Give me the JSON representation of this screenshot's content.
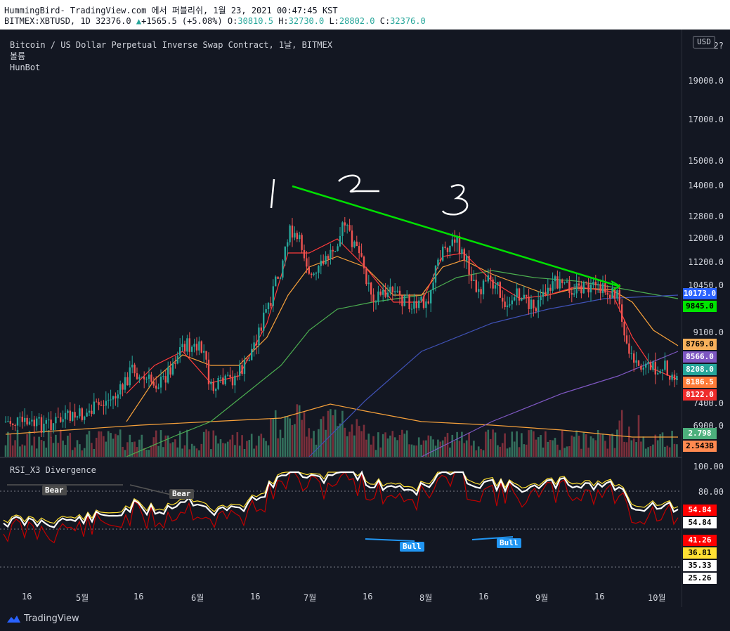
{
  "topbar": {
    "title": "HummingBird- TradingView.com 에서 퍼블리쉬, 1월 23, 2021 00:47:45 KST",
    "symbol": "BITMEX:XBTUSD, 1D 32376.0",
    "change": "+1565.5 (+5.08%)",
    "o_label": "O:",
    "o_value": "30810.5",
    "h_label": "H:",
    "h_value": "32730.0",
    "l_label": "L:",
    "l_value": "28802.0",
    "c_label": "C:",
    "c_value": "32376.0"
  },
  "legend": {
    "line1": "Bitcoin / US Dollar Perpetual Inverse Swap Contract, 1날, BITMEX",
    "line2": "볼륨",
    "line3": "HunBot",
    "rsi": "RSI_X3 Divergence"
  },
  "axis": {
    "currency": "USD",
    "price_ticks": [
      "19000.0",
      "17000.0",
      "15000.0",
      "14000.0",
      "12800.0",
      "12000.0",
      "11200.0",
      "10450.0",
      "9100.0",
      "7400.0",
      "6900.0"
    ],
    "top_partial": "2?",
    "rsi_ticks": [
      "100.00",
      "80.00",
      "25.26"
    ]
  },
  "price_tags": [
    {
      "text": "10173.0",
      "bg": "#2962ff",
      "fg": "#ffffff"
    },
    {
      "text": "9845.0",
      "bg": "#00e600",
      "fg": "#000000"
    },
    {
      "text": "8769.0",
      "bg": "#f7b05b",
      "fg": "#000000"
    },
    {
      "text": "8566.0",
      "bg": "#7e57c2",
      "fg": "#ffffff"
    },
    {
      "text": "8208.0",
      "bg": "#26a69a",
      "fg": "#ffffff"
    },
    {
      "text": "8186.5",
      "bg": "#ff7b38",
      "fg": "#ffffff"
    },
    {
      "text": "8122.0",
      "bg": "#ef2b2b",
      "fg": "#ffffff"
    },
    {
      "text": "2.798",
      "bg": "#4caf7c",
      "fg": "#ffffff"
    },
    {
      "text": "2.543B",
      "bg": "#ff8a50",
      "fg": "#000000"
    }
  ],
  "rsi_tags": [
    {
      "text": "54.84",
      "bg": "#ff0000",
      "fg": "#ffffff"
    },
    {
      "text": "54.84",
      "bg": "#ffffff",
      "fg": "#000000"
    },
    {
      "text": "41.26",
      "bg": "#ff0000",
      "fg": "#ffffff"
    },
    {
      "text": "36.81",
      "bg": "#ffe033",
      "fg": "#000000"
    },
    {
      "text": "35.33",
      "bg": "#ffffff",
      "fg": "#000000"
    }
  ],
  "xaxis": [
    "16",
    "5월",
    "16",
    "6월",
    "16",
    "7월",
    "16",
    "8월",
    "16",
    "9월",
    "16",
    "10월"
  ],
  "signals": {
    "bear1": "Bear",
    "bear2": "Bear",
    "bull1": "Bull",
    "bull2": "Bull"
  },
  "annotations": {
    "n1": "1",
    "n2": "2",
    "n3": "3"
  },
  "footer": {
    "brand": "TradingView"
  },
  "colors": {
    "up": "#26a69a",
    "down": "#ef5350",
    "trend": "#00ff00",
    "ma_green": "#4caf50",
    "ma_blue": "#3f51b5",
    "ma_purple": "#7e57c2",
    "ma_orange": "#f7a13b",
    "ma_red": "#ff3b3b"
  }
}
